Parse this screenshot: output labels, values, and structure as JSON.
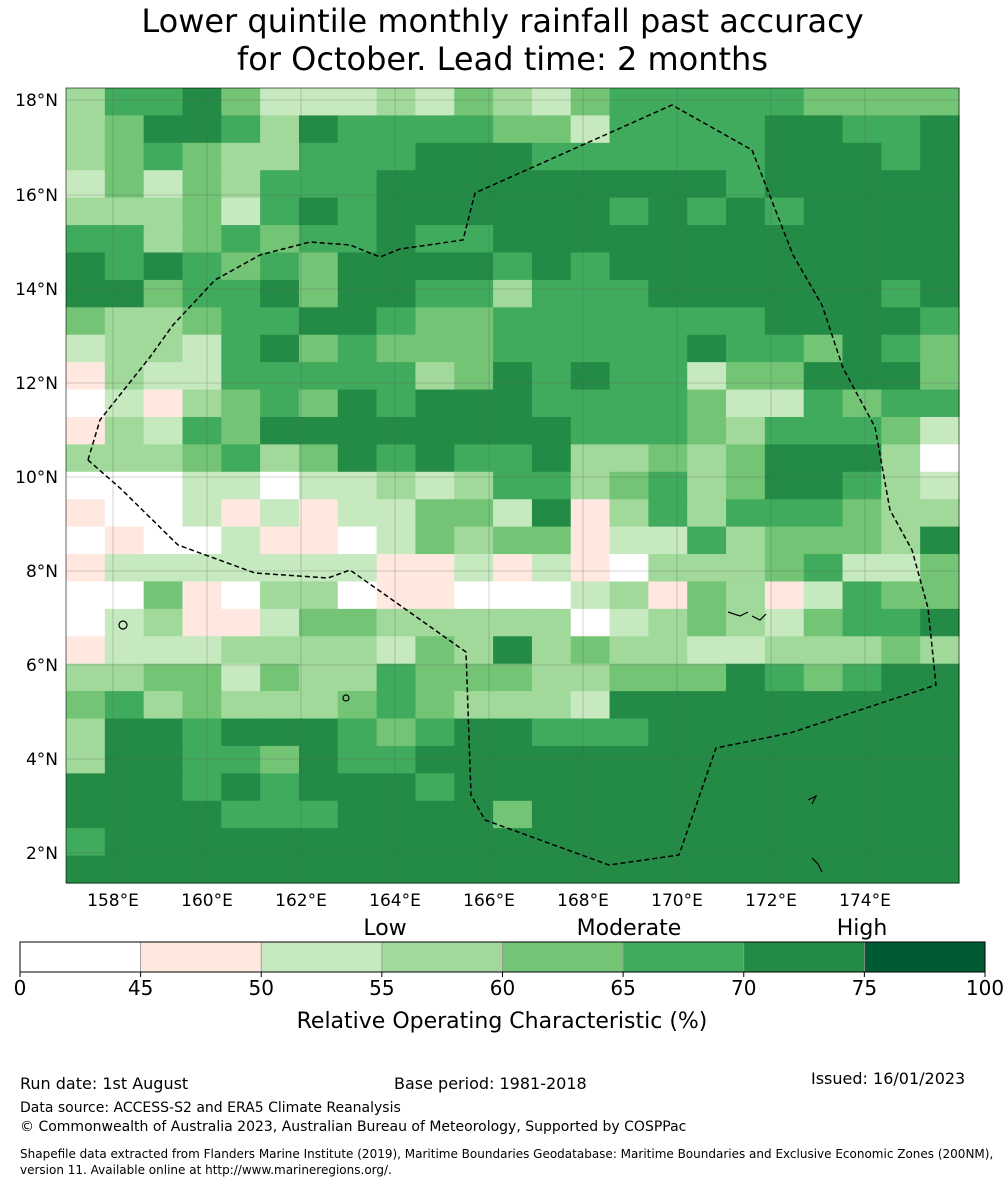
{
  "title": {
    "line1": "Lower quintile monthly rainfall past accuracy",
    "line2": "for October. Lead time: 2 months"
  },
  "map": {
    "lon_ticks": [
      "158°E",
      "160°E",
      "162°E",
      "164°E",
      "166°E",
      "168°E",
      "170°E",
      "172°E",
      "174°E"
    ],
    "lat_ticks": [
      "18°N",
      "16°N",
      "14°N",
      "12°N",
      "10°N",
      "8°N",
      "6°N",
      "4°N",
      "2°N"
    ],
    "grid_rows": [
      [
        3,
        5,
        5,
        6,
        4,
        2,
        2,
        2,
        3,
        2,
        4,
        3,
        2,
        4,
        5,
        5,
        5,
        5,
        5,
        4,
        4,
        4,
        4
      ],
      [
        3,
        4,
        6,
        6,
        5,
        3,
        6,
        5,
        5,
        5,
        5,
        4,
        4,
        2,
        5,
        5,
        5,
        5,
        6,
        6,
        5,
        5,
        6
      ],
      [
        3,
        4,
        5,
        4,
        3,
        3,
        5,
        5,
        5,
        6,
        6,
        6,
        5,
        5,
        5,
        5,
        5,
        5,
        6,
        6,
        6,
        5,
        6
      ],
      [
        2,
        4,
        2,
        4,
        3,
        5,
        5,
        5,
        6,
        6,
        6,
        6,
        6,
        6,
        6,
        6,
        6,
        5,
        6,
        6,
        6,
        6,
        6
      ],
      [
        3,
        3,
        3,
        4,
        2,
        5,
        6,
        5,
        6,
        6,
        6,
        6,
        6,
        6,
        5,
        6,
        5,
        6,
        5,
        6,
        6,
        6,
        6
      ],
      [
        5,
        5,
        3,
        4,
        5,
        4,
        5,
        5,
        6,
        5,
        5,
        6,
        6,
        6,
        6,
        6,
        6,
        6,
        6,
        6,
        6,
        6,
        6
      ],
      [
        6,
        5,
        6,
        5,
        4,
        5,
        4,
        6,
        6,
        6,
        6,
        5,
        6,
        5,
        6,
        6,
        6,
        6,
        6,
        6,
        6,
        6,
        6
      ],
      [
        6,
        6,
        4,
        5,
        5,
        6,
        4,
        6,
        6,
        5,
        5,
        3,
        5,
        5,
        5,
        6,
        6,
        6,
        6,
        6,
        6,
        5,
        6
      ],
      [
        4,
        3,
        3,
        4,
        5,
        5,
        6,
        6,
        5,
        4,
        4,
        5,
        5,
        5,
        5,
        5,
        5,
        5,
        6,
        6,
        6,
        6,
        5
      ],
      [
        2,
        3,
        3,
        2,
        5,
        6,
        4,
        5,
        4,
        4,
        4,
        5,
        5,
        5,
        5,
        5,
        6,
        5,
        5,
        4,
        6,
        5,
        4
      ],
      [
        1,
        3,
        2,
        2,
        5,
        5,
        5,
        5,
        5,
        3,
        4,
        6,
        5,
        6,
        5,
        5,
        2,
        4,
        4,
        6,
        6,
        6,
        4
      ],
      [
        0,
        2,
        1,
        3,
        4,
        5,
        4,
        6,
        5,
        6,
        6,
        6,
        5,
        5,
        5,
        5,
        4,
        2,
        2,
        5,
        4,
        5,
        5
      ],
      [
        1,
        3,
        2,
        5,
        4,
        6,
        6,
        6,
        6,
        6,
        6,
        6,
        6,
        5,
        5,
        5,
        4,
        3,
        5,
        5,
        5,
        4,
        2
      ],
      [
        3,
        3,
        3,
        4,
        5,
        3,
        4,
        6,
        5,
        6,
        5,
        5,
        6,
        3,
        3,
        4,
        3,
        4,
        6,
        6,
        6,
        3,
        0
      ],
      [
        0,
        0,
        0,
        2,
        2,
        0,
        2,
        2,
        3,
        2,
        3,
        5,
        5,
        3,
        4,
        5,
        3,
        4,
        6,
        6,
        5,
        3,
        2
      ],
      [
        1,
        0,
        0,
        2,
        1,
        2,
        1,
        2,
        2,
        4,
        4,
        2,
        6,
        1,
        3,
        5,
        3,
        5,
        5,
        5,
        4,
        3,
        3
      ],
      [
        0,
        1,
        0,
        0,
        2,
        1,
        1,
        0,
        2,
        4,
        3,
        4,
        4,
        1,
        2,
        2,
        5,
        3,
        4,
        4,
        4,
        3,
        6
      ],
      [
        1,
        2,
        2,
        2,
        2,
        2,
        2,
        2,
        1,
        1,
        2,
        1,
        2,
        1,
        0,
        3,
        3,
        3,
        4,
        5,
        2,
        2,
        4
      ],
      [
        0,
        0,
        4,
        1,
        0,
        3,
        3,
        0,
        1,
        1,
        0,
        0,
        0,
        2,
        3,
        1,
        4,
        3,
        1,
        2,
        5,
        4,
        4
      ],
      [
        0,
        2,
        3,
        1,
        1,
        2,
        4,
        4,
        3,
        3,
        3,
        3,
        3,
        0,
        2,
        3,
        4,
        3,
        2,
        4,
        5,
        5,
        6
      ],
      [
        1,
        2,
        2,
        2,
        3,
        3,
        3,
        3,
        2,
        4,
        3,
        6,
        3,
        4,
        3,
        3,
        2,
        2,
        3,
        3,
        3,
        4,
        3
      ],
      [
        3,
        3,
        4,
        4,
        2,
        4,
        3,
        3,
        5,
        4,
        4,
        4,
        3,
        3,
        4,
        4,
        4,
        6,
        5,
        4,
        5,
        6,
        6
      ],
      [
        4,
        5,
        3,
        4,
        3,
        3,
        3,
        4,
        5,
        4,
        3,
        3,
        3,
        2,
        6,
        6,
        6,
        6,
        6,
        6,
        6,
        6,
        6
      ],
      [
        3,
        6,
        6,
        5,
        6,
        6,
        6,
        5,
        4,
        5,
        6,
        6,
        5,
        5,
        5,
        6,
        6,
        6,
        6,
        6,
        6,
        6,
        6
      ],
      [
        3,
        6,
        6,
        5,
        5,
        4,
        6,
        5,
        5,
        6,
        6,
        6,
        6,
        6,
        6,
        6,
        6,
        6,
        6,
        6,
        6,
        6,
        6
      ],
      [
        6,
        6,
        6,
        5,
        6,
        5,
        6,
        6,
        6,
        5,
        6,
        6,
        6,
        6,
        6,
        6,
        6,
        6,
        6,
        6,
        6,
        6,
        6
      ],
      [
        6,
        6,
        6,
        6,
        5,
        5,
        5,
        6,
        6,
        6,
        6,
        4,
        6,
        6,
        6,
        6,
        6,
        6,
        6,
        6,
        6,
        6,
        6
      ],
      [
        5,
        6,
        6,
        6,
        6,
        6,
        6,
        6,
        6,
        6,
        6,
        6,
        6,
        6,
        6,
        6,
        6,
        6,
        6,
        6,
        6,
        6,
        6
      ],
      [
        6,
        6,
        6,
        6,
        6,
        6,
        6,
        6,
        6,
        6,
        6,
        6,
        6,
        6,
        6,
        6,
        6,
        6,
        6,
        6,
        6,
        6,
        6
      ]
    ]
  },
  "colorbar": {
    "category_labels": [
      "Low",
      "Moderate",
      "High"
    ],
    "ticks": [
      "0",
      "45",
      "50",
      "55",
      "60",
      "65",
      "70",
      "75",
      "100"
    ],
    "colors": [
      "#ffffff",
      "#fee8e0",
      "#c7e9c0",
      "#a1d99b",
      "#74c476",
      "#41ab5d",
      "#238b45",
      "#005a32"
    ],
    "label": "Relative Operating Characteristic (%)"
  },
  "footer": {
    "run_date": "Run date: 1st August",
    "base_period": "Base period: 1981-2018",
    "issued": "Issued: 16/01/2023",
    "data_source": "Data source: ACCESS-S2 and ERA5 Climate Reanalysis",
    "copyright": "© Commonwealth of Australia 2023, Australian Bureau of Meteorology, Supported by COSPPac",
    "shapefile": "Shapefile data extracted from Flanders Marine Institute (2019), Maritime Boundaries Geodatabase: Maritime Boundaries and Exclusive Economic Zones (200NM), version 11. Available online at http://www.marineregions.org/."
  }
}
